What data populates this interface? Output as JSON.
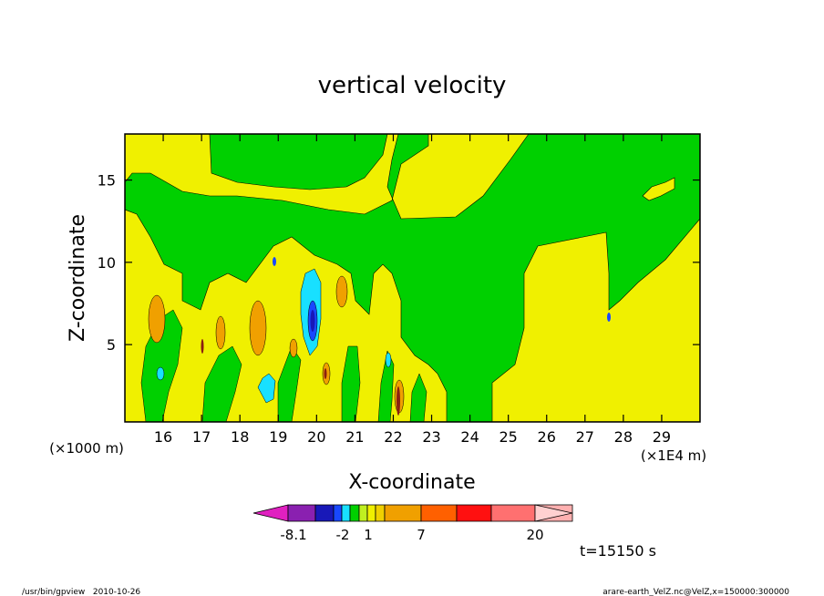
{
  "chart_data": {
    "type": "heatmap",
    "title": "vertical velocity",
    "xlabel": "X-coordinate",
    "ylabel": "Z-coordinate",
    "x_unit_label": "(×1E4 m)",
    "y_unit_label": "(×1000 m)",
    "x_ticks": [
      16,
      17,
      18,
      19,
      20,
      21,
      22,
      23,
      24,
      25,
      26,
      27,
      28,
      29
    ],
    "y_ticks": [
      5,
      10,
      15
    ],
    "xlim": [
      15.0,
      30.0
    ],
    "ylim": [
      0.3,
      17.8
    ],
    "colorbar": {
      "label_values": [
        "-8.1",
        "-2",
        "1",
        "7",
        "20"
      ],
      "colors": [
        "#e020c0",
        "#8a20b0",
        "#1818b8",
        "#1848ff",
        "#18e0ff",
        "#00d000",
        "#c0f020",
        "#f0f000",
        "#f0d000",
        "#f0a000",
        "#ff6000",
        "#ff1010",
        "#ff7070",
        "#ffb0b0",
        "#ffd0d0"
      ]
    },
    "time_label": "t=15150 s",
    "footer_left": "/usr/bin/gpview   2010-10-26",
    "footer_right": "arare-earth_VelZ.nc@VelZ,x=150000:300000"
  }
}
